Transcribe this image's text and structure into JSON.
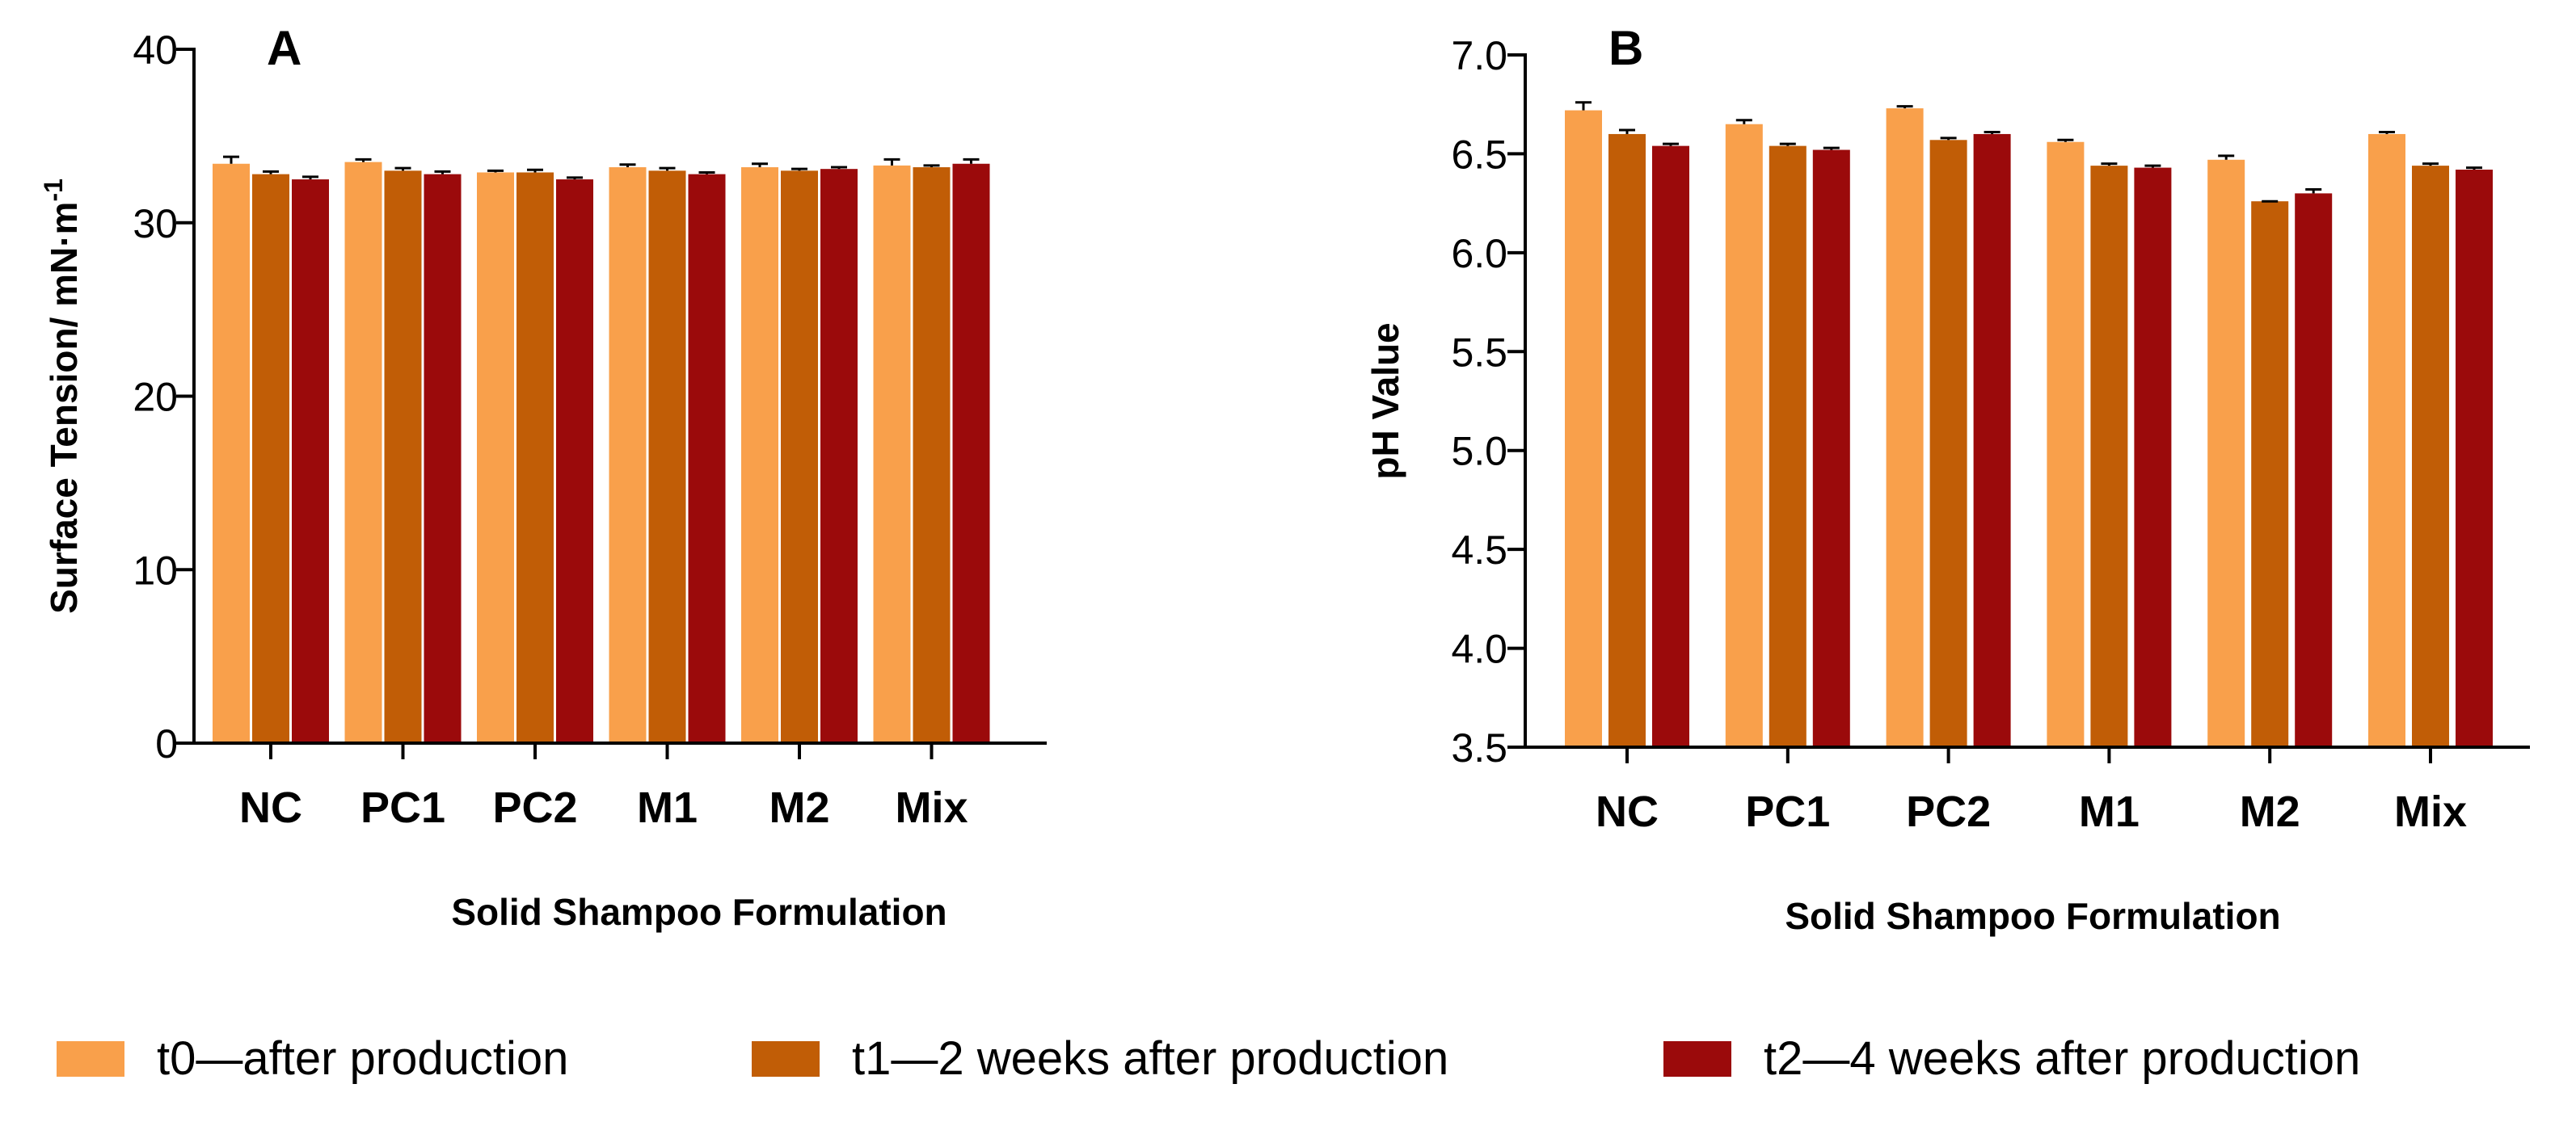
{
  "colors": {
    "t0": "#f9a04b",
    "t1": "#c15d06",
    "t2": "#9b0a0b",
    "axis": "#000000",
    "error_bar": "#000000"
  },
  "legend": {
    "t0": "t0—after production",
    "t1": "t1—2 weeks after production",
    "t2": "t2—4 weeks after production"
  },
  "chart_data": [
    {
      "type": "bar",
      "panel_label": "A",
      "title": "",
      "xlabel": "Solid Shampoo Formulation",
      "ylabel": "Surface Tension/ mN·m",
      "ylabel_sup": "-1",
      "categories": [
        "NC",
        "PC1",
        "PC2",
        "M1",
        "M2",
        "Mix"
      ],
      "ylim": [
        0,
        40
      ],
      "yticks": [
        0,
        10,
        20,
        30,
        40
      ],
      "ytick_labels": [
        "0",
        "10",
        "20",
        "30",
        "40"
      ],
      "series": [
        {
          "name": "t0—after production",
          "values": [
            33.4,
            33.5,
            32.9,
            33.2,
            33.2,
            33.3
          ],
          "errors": [
            0.4,
            0.15,
            0.1,
            0.15,
            0.2,
            0.35
          ]
        },
        {
          "name": "t1—2 weeks after production",
          "values": [
            32.8,
            33.0,
            32.9,
            33.0,
            33.0,
            33.2
          ],
          "errors": [
            0.15,
            0.15,
            0.15,
            0.15,
            0.1,
            0.1
          ]
        },
        {
          "name": "t2—4 weeks after production",
          "values": [
            32.5,
            32.8,
            32.5,
            32.8,
            33.1,
            33.4
          ],
          "errors": [
            0.15,
            0.15,
            0.1,
            0.1,
            0.1,
            0.25
          ]
        }
      ]
    },
    {
      "type": "bar",
      "panel_label": "B",
      "title": "",
      "xlabel": "Solid Shampoo Formulation",
      "ylabel": "pH Value",
      "ylabel_sup": "",
      "categories": [
        "NC",
        "PC1",
        "PC2",
        "M1",
        "M2",
        "Mix"
      ],
      "ylim": [
        3.5,
        7.0
      ],
      "yticks": [
        3.5,
        4.0,
        4.5,
        5.0,
        5.5,
        6.0,
        6.5,
        7.0
      ],
      "ytick_labels": [
        "3.5",
        "4.0",
        "4.5",
        "5.0",
        "5.5",
        "6.0",
        "6.5",
        "7.0"
      ],
      "series": [
        {
          "name": "t0—after production",
          "values": [
            6.72,
            6.65,
            6.73,
            6.56,
            6.47,
            6.6
          ],
          "errors": [
            0.04,
            0.02,
            0.01,
            0.01,
            0.02,
            0.01
          ]
        },
        {
          "name": "t1—2 weeks after production",
          "values": [
            6.6,
            6.54,
            6.57,
            6.44,
            6.26,
            6.44
          ],
          "errors": [
            0.02,
            0.01,
            0.01,
            0.01,
            0.0,
            0.01
          ]
        },
        {
          "name": "t2—4 weeks after production",
          "values": [
            6.54,
            6.52,
            6.6,
            6.43,
            6.3,
            6.42
          ],
          "errors": [
            0.01,
            0.01,
            0.01,
            0.01,
            0.02,
            0.01
          ]
        }
      ]
    }
  ]
}
